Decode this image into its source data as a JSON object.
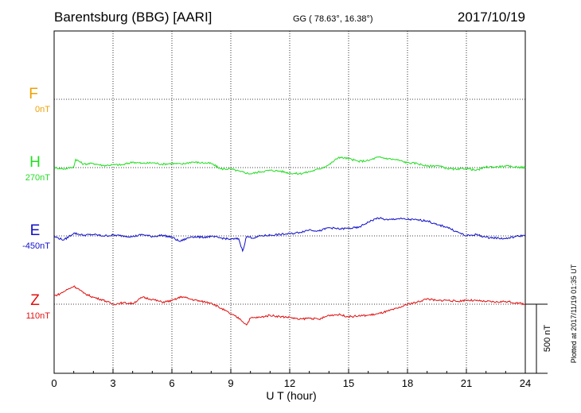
{
  "header": {
    "station": "Barentsburg (BBG)  [AARI]",
    "coords": "GG ( 78.63°,  16.38°)",
    "date": "2017/10/19"
  },
  "plotted_note": "Plotted at 2017/11/19 01:35 UT",
  "colors": {
    "F": "#f0a000",
    "H": "#22dd22",
    "E": "#1010c8",
    "Z": "#e01010",
    "axis": "#000000"
  },
  "chart_data": {
    "type": "line",
    "title": "",
    "xlabel": "U T (hour)",
    "ylabel": "",
    "xlim": [
      0,
      24
    ],
    "x_ticks": [
      "0",
      "3",
      "6",
      "9",
      "12",
      "15",
      "18",
      "21",
      "24"
    ],
    "grid": true,
    "scale_bar": "500 nT",
    "series": [
      {
        "name": "F",
        "baseline_label": "0nT",
        "x": [],
        "y": []
      },
      {
        "name": "H",
        "baseline_label": "270nT",
        "x": [
          0,
          0.5,
          1,
          1.1,
          1.5,
          2,
          2.5,
          3,
          3.5,
          4,
          4.5,
          5,
          5.5,
          6,
          6.5,
          7,
          7.5,
          8,
          8.5,
          9,
          9.5,
          10,
          10.5,
          11,
          11.5,
          12,
          12.5,
          13,
          13.5,
          14,
          14.5,
          15,
          15.5,
          16,
          16.5,
          17,
          17.5,
          18,
          18.5,
          19,
          19.5,
          20,
          20.5,
          21,
          21.5,
          22,
          22.5,
          23,
          23.5,
          24
        ],
        "y": [
          0,
          -10,
          5,
          60,
          25,
          30,
          15,
          20,
          20,
          40,
          30,
          35,
          25,
          30,
          25,
          40,
          35,
          30,
          -10,
          -10,
          -30,
          -45,
          -30,
          -20,
          -25,
          -40,
          -45,
          -30,
          -10,
          20,
          75,
          65,
          45,
          50,
          75,
          65,
          55,
          35,
          30,
          10,
          15,
          -5,
          -15,
          -5,
          -20,
          5,
          5,
          10,
          5,
          0
        ]
      },
      {
        "name": "E",
        "baseline_label": "-450nT",
        "x": [
          0,
          0.5,
          1,
          1.5,
          2,
          2.5,
          3,
          3.5,
          4,
          4.5,
          5,
          5.5,
          6,
          6.4,
          7,
          7.5,
          8,
          8.5,
          9,
          9.4,
          9.6,
          9.8,
          10.2,
          10.5,
          11,
          11.5,
          12,
          12.5,
          13,
          13.5,
          14,
          14.5,
          15,
          15.5,
          16,
          16.5,
          17,
          17.5,
          18,
          18.5,
          19,
          19.5,
          20,
          20.5,
          21,
          21.5,
          22,
          22.5,
          23,
          23.5,
          24
        ],
        "y": [
          -5,
          -30,
          20,
          5,
          10,
          0,
          5,
          0,
          -5,
          10,
          -5,
          5,
          -10,
          -40,
          -5,
          -10,
          -5,
          -15,
          -25,
          -20,
          -110,
          -5,
          -15,
          0,
          5,
          10,
          15,
          25,
          45,
          35,
          60,
          50,
          55,
          60,
          100,
          130,
          115,
          125,
          120,
          115,
          110,
          80,
          65,
          30,
          0,
          10,
          -10,
          -15,
          -20,
          -5,
          5
        ]
      },
      {
        "name": "Z",
        "baseline_label": "110nT",
        "x": [
          0,
          0.3,
          0.6,
          1,
          1.2,
          1.5,
          2,
          2.5,
          3,
          3.5,
          4,
          4.5,
          5,
          5.5,
          6,
          6.5,
          7,
          7.5,
          8,
          8.5,
          9,
          9.5,
          9.8,
          10,
          10.5,
          11,
          11.5,
          12,
          12.5,
          13,
          13.5,
          14,
          14.5,
          15,
          15.5,
          16,
          16.5,
          17,
          17.5,
          18,
          18.5,
          19,
          19.5,
          20,
          20.5,
          21,
          21.5,
          22,
          22.5,
          23,
          23.5,
          24
        ],
        "y": [
          60,
          75,
          100,
          130,
          115,
          80,
          50,
          30,
          0,
          10,
          5,
          50,
          35,
          15,
          25,
          55,
          35,
          20,
          10,
          -30,
          -70,
          -110,
          -150,
          -100,
          -95,
          -80,
          -90,
          -95,
          -110,
          -100,
          -110,
          -80,
          -75,
          -90,
          -85,
          -80,
          -70,
          -50,
          -30,
          0,
          15,
          40,
          25,
          30,
          20,
          30,
          25,
          20,
          15,
          20,
          10,
          0
        ]
      }
    ]
  }
}
